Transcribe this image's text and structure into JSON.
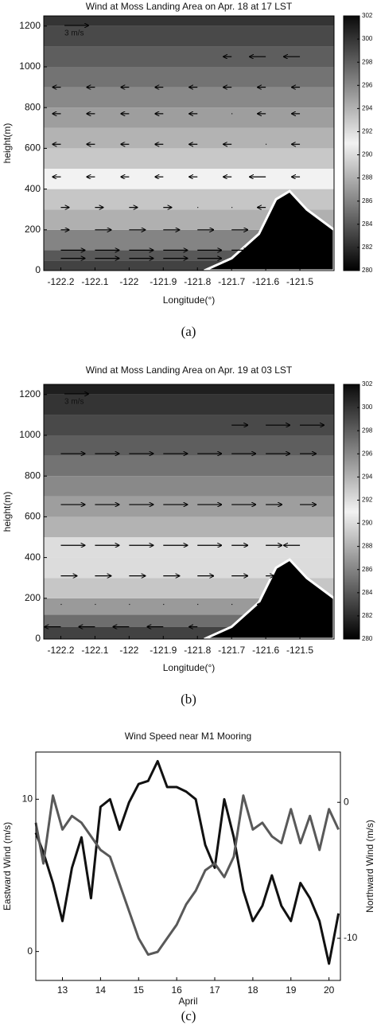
{
  "chart_data": [
    {
      "type": "contour",
      "title": "Wind at Moss Landing Area on Apr. 18 at 17 LST",
      "xlabel": "Longitude(°)",
      "ylabel": "height(m)",
      "caption": "(a)",
      "xlim": [
        -122.25,
        -121.4
      ],
      "xticks": [
        -122.2,
        -122.1,
        -122,
        -121.9,
        -121.8,
        -121.7,
        -121.6,
        -121.5
      ],
      "ylim": [
        0,
        1250
      ],
      "yticks": [
        0,
        200,
        400,
        600,
        800,
        1000,
        1200
      ],
      "clim": [
        280,
        302
      ],
      "cticks": [
        280,
        282,
        284,
        286,
        288,
        290,
        292,
        294,
        296,
        298,
        300,
        302
      ],
      "colormap": [
        "#000000",
        "#f2f2f2",
        "#0a0a0a"
      ],
      "levels": {
        "height": [
          0,
          50,
          100,
          200,
          300,
          400,
          500,
          600,
          700,
          800,
          900,
          1000,
          1100,
          1200
        ],
        "value": [
          283,
          284,
          286,
          288,
          289,
          291,
          293,
          294,
          295,
          296,
          297,
          298,
          299,
          300
        ]
      },
      "terrain": {
        "x": [
          -121.78,
          -121.7,
          -121.62,
          -121.57,
          -121.53,
          -121.48,
          -121.4
        ],
        "height": [
          0,
          60,
          180,
          350,
          390,
          300,
          200
        ]
      },
      "arrows": {
        "x": [
          -122.2,
          -122.1,
          -122.0,
          -121.9,
          -121.8,
          -121.7,
          -121.6,
          -121.5
        ],
        "rows": [
          {
            "height": 60,
            "u": [
              3,
              3,
              3,
              3,
              3,
              null,
              null,
              null
            ]
          },
          {
            "height": 100,
            "u": [
              3,
              3,
              3,
              3,
              3,
              2,
              null,
              null
            ]
          },
          {
            "height": 200,
            "u": [
              1,
              2,
              2,
              2,
              2,
              2,
              null,
              null
            ]
          },
          {
            "height": 310,
            "u": [
              1,
              1,
              1,
              1,
              0,
              0,
              -1,
              null
            ]
          },
          {
            "height": 460,
            "u": [
              -1,
              -1,
              -1,
              -1,
              -1,
              -1,
              -2,
              -1
            ]
          },
          {
            "height": 620,
            "u": [
              -1,
              -1,
              -1,
              -1,
              -1,
              -1,
              0,
              -1
            ]
          },
          {
            "height": 770,
            "u": [
              -1,
              -1,
              -1,
              -1,
              -1,
              0,
              -1,
              -1
            ]
          },
          {
            "height": 900,
            "u": [
              -1,
              -1,
              -1,
              -1,
              -1,
              -1,
              -1,
              -1
            ]
          },
          {
            "height": 1050,
            "u": [
              null,
              null,
              null,
              null,
              null,
              -1,
              -2,
              -2
            ]
          }
        ]
      },
      "scale_label": "3 m/s",
      "scale_value": 3
    },
    {
      "type": "contour",
      "title": "Wind at Moss Landing Area on Apr. 19 at 03 LST",
      "xlabel": "Longitude(°)",
      "ylabel": "height(m)",
      "caption": "(b)",
      "xlim": [
        -122.25,
        -121.4
      ],
      "xticks": [
        -122.2,
        -122.1,
        -122,
        -121.9,
        -121.8,
        -121.7,
        -121.6,
        -121.5
      ],
      "ylim": [
        0,
        1250
      ],
      "yticks": [
        0,
        200,
        400,
        600,
        800,
        1000,
        1200
      ],
      "clim": [
        280,
        302
      ],
      "cticks": [
        280,
        282,
        284,
        286,
        288,
        290,
        292,
        294,
        296,
        298,
        300,
        302
      ],
      "colormap": [
        "#000000",
        "#f2f2f2",
        "#0a0a0a"
      ],
      "levels": {
        "height": [
          0,
          60,
          120,
          200,
          300,
          400,
          500,
          600,
          700,
          800,
          900,
          1000,
          1100,
          1200
        ],
        "value": [
          283,
          285,
          287,
          289,
          290,
          292,
          294,
          295,
          296,
          297,
          298,
          299,
          300,
          301
        ]
      },
      "terrain": {
        "x": [
          -121.78,
          -121.7,
          -121.62,
          -121.57,
          -121.53,
          -121.48,
          -121.4
        ],
        "height": [
          0,
          60,
          180,
          350,
          390,
          300,
          200
        ]
      },
      "arrows": {
        "x": [
          -122.2,
          -122.1,
          -122.0,
          -121.9,
          -121.8,
          -121.7,
          -121.6,
          -121.5
        ],
        "rows": [
          {
            "height": 60,
            "u": [
              -2,
              -2,
              -2,
              -2,
              -1,
              null,
              null,
              null
            ]
          },
          {
            "height": 170,
            "u": [
              0,
              0,
              0,
              0,
              0,
              0,
              -1,
              null
            ]
          },
          {
            "height": 310,
            "u": [
              2,
              2,
              2,
              2,
              2,
              2,
              1,
              null
            ]
          },
          {
            "height": 460,
            "u": [
              3,
              3,
              3,
              3,
              3,
              2,
              2,
              -2
            ]
          },
          {
            "height": 660,
            "u": [
              3,
              3,
              3,
              3,
              3,
              3,
              2,
              2
            ]
          },
          {
            "height": 910,
            "u": [
              3,
              3,
              3,
              3,
              3,
              3,
              3,
              2
            ]
          },
          {
            "height": 1050,
            "u": [
              null,
              null,
              null,
              null,
              null,
              2,
              3,
              3
            ]
          }
        ]
      },
      "scale_label": "3 m/s",
      "scale_value": 3
    },
    {
      "type": "line",
      "title": "Wind Speed near M1 Mooring",
      "xlabel": "April",
      "ylabel": "Eastward Wind (m/s)",
      "y2label": "Northward Wind (m/s)",
      "caption": "(c)",
      "xlim": [
        12.3,
        20.3
      ],
      "xticks": [
        13,
        14,
        15,
        16,
        17,
        18,
        19,
        20
      ],
      "ylim": [
        -1.9,
        13.1
      ],
      "yticks": [
        0,
        10
      ],
      "y2lim": [
        -13.1,
        3.7
      ],
      "y2ticks": [
        -10,
        0
      ],
      "x": [
        12.3,
        12.5,
        12.75,
        13,
        13.25,
        13.5,
        13.75,
        14,
        14.25,
        14.5,
        14.75,
        15,
        15.25,
        15.5,
        15.75,
        16,
        16.25,
        16.5,
        16.75,
        17,
        17.25,
        17.5,
        17.75,
        18,
        18.25,
        18.5,
        18.75,
        19,
        19.25,
        19.5,
        19.75,
        20,
        20.25
      ],
      "series": [
        {
          "name": "Eastward Wind",
          "color": "#111111",
          "values": [
            7.8,
            6.5,
            4.5,
            2.0,
            5.5,
            7.5,
            3.5,
            9.5,
            10.0,
            8.0,
            9.8,
            11.0,
            11.2,
            12.5,
            10.8,
            10.8,
            10.5,
            10.0,
            7.0,
            5.5,
            10.0,
            7.5,
            4.0,
            2.0,
            3.0,
            5.0,
            3.0,
            2.0,
            4.5,
            3.5,
            2.0,
            -0.8,
            2.5
          ]
        },
        {
          "name": "Northward Wind",
          "color": "#595959",
          "axis": "y2",
          "values": [
            -1.5,
            -4.5,
            0.5,
            -2.0,
            -1.0,
            -1.5,
            -2.5,
            -3.5,
            -4.0,
            -6.0,
            -8.0,
            -10.0,
            -11.2,
            -11.0,
            -10.0,
            -9.0,
            -7.5,
            -6.5,
            -5.0,
            -4.5,
            -5.5,
            -4.0,
            0.5,
            -2.0,
            -1.5,
            -2.5,
            -3.0,
            -0.5,
            -3.0,
            -1.0,
            -3.5,
            -0.5,
            -2.0
          ]
        }
      ]
    }
  ]
}
